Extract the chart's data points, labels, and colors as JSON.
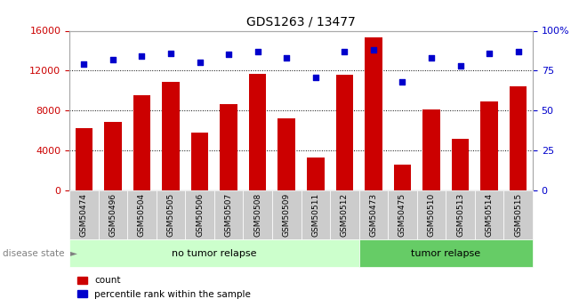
{
  "title": "GDS1263 / 13477",
  "samples": [
    "GSM50474",
    "GSM50496",
    "GSM50504",
    "GSM50505",
    "GSM50506",
    "GSM50507",
    "GSM50508",
    "GSM50509",
    "GSM50511",
    "GSM50512",
    "GSM50473",
    "GSM50475",
    "GSM50510",
    "GSM50513",
    "GSM50514",
    "GSM50515"
  ],
  "counts": [
    6200,
    6900,
    9500,
    10900,
    5800,
    8600,
    11700,
    7200,
    3300,
    11600,
    15300,
    2600,
    8100,
    5200,
    8900,
    10400
  ],
  "percentiles": [
    79,
    82,
    84,
    86,
    80,
    85,
    87,
    83,
    71,
    87,
    88,
    68,
    83,
    78,
    86,
    87
  ],
  "bar_color": "#cc0000",
  "dot_color": "#0000cc",
  "ylim_left": [
    0,
    16000
  ],
  "ylim_right": [
    0,
    100
  ],
  "yticks_left": [
    0,
    4000,
    8000,
    12000,
    16000
  ],
  "yticks_right": [
    0,
    25,
    50,
    75,
    100
  ],
  "group_labels": [
    "no tumor relapse",
    "tumor relapse"
  ],
  "group_colors": [
    "#ccffcc",
    "#66cc66"
  ],
  "group_splits": [
    10,
    6
  ],
  "disease_state_label": "disease state",
  "legend_count_label": "count",
  "legend_pct_label": "percentile rank within the sample",
  "bg_color": "#ffffff",
  "tick_bg": "#cccccc"
}
